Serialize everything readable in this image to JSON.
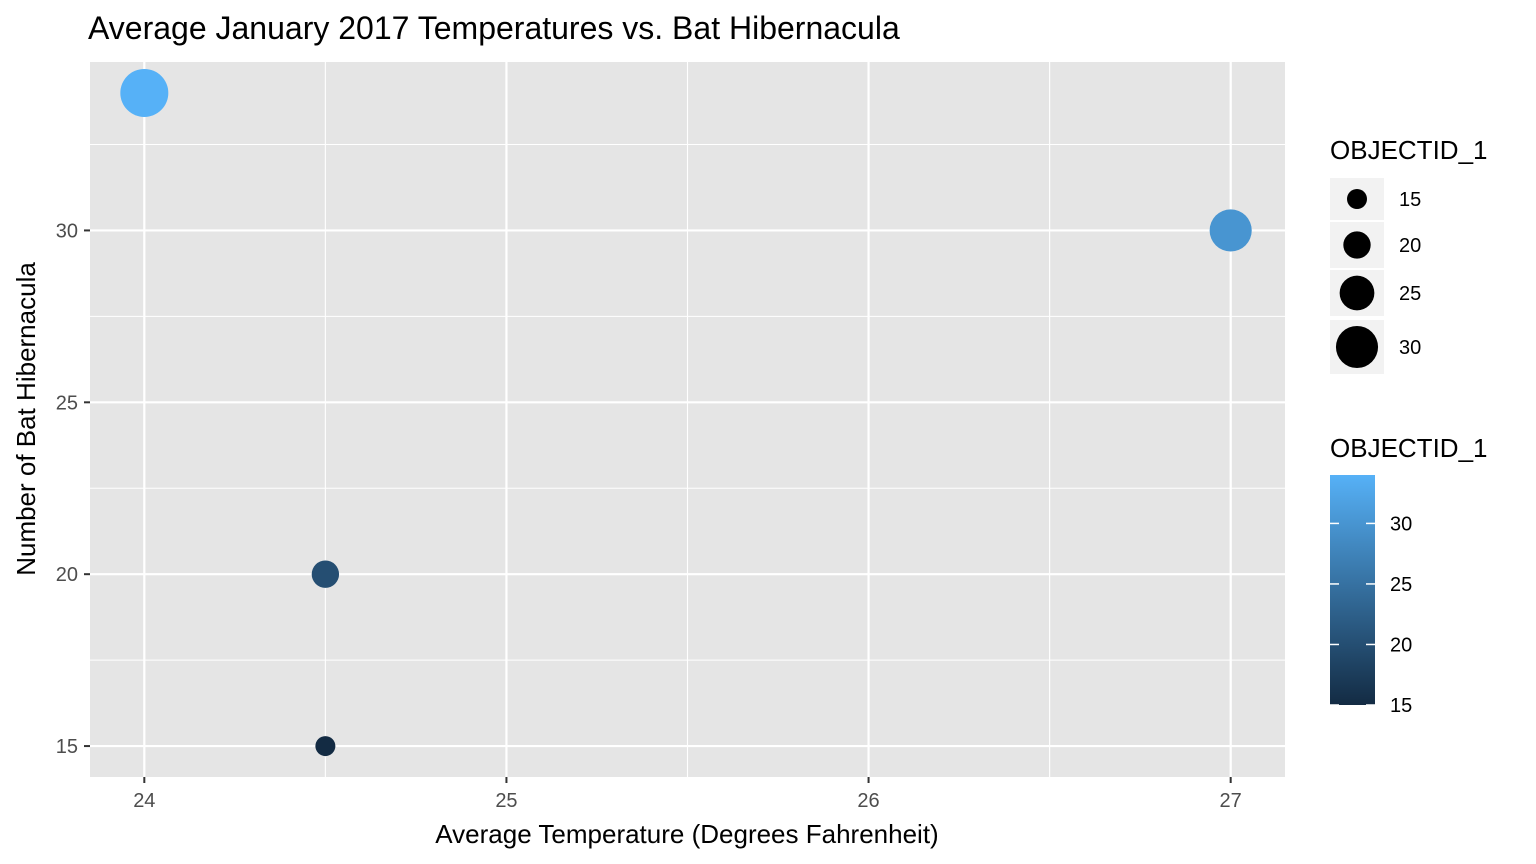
{
  "chart_data": {
    "type": "scatter",
    "title": "Average January 2017 Temperatures vs. Bat Hibernacula",
    "xlabel": "Average Temperature (Degrees Fahrenheit)",
    "ylabel": "Number of Bat Hibernacula",
    "xlim": [
      23.85,
      27.15
    ],
    "ylim": [
      14.1,
      34.9
    ],
    "x_ticks": [
      24,
      25,
      26,
      27
    ],
    "y_ticks": [
      15,
      20,
      25,
      30
    ],
    "grid": true,
    "points": [
      {
        "x": 24.0,
        "y": 34,
        "objectid": 34
      },
      {
        "x": 27.0,
        "y": 30,
        "objectid": 30
      },
      {
        "x": 24.5,
        "y": 20,
        "objectid": 20
      },
      {
        "x": 24.5,
        "y": 15,
        "objectid": 15
      }
    ],
    "size_legend": {
      "title": "OBJECTID_1",
      "entries": [
        15,
        20,
        25,
        30
      ]
    },
    "color_legend": {
      "title": "OBJECTID_1",
      "ticks": [
        15,
        20,
        25,
        30
      ],
      "range": [
        15,
        34
      ],
      "low_color": "#132B43",
      "high_color": "#56B1F7"
    },
    "legend_position": "right",
    "panel_background": "#e5e5e5",
    "grid_color": "#ffffff"
  }
}
